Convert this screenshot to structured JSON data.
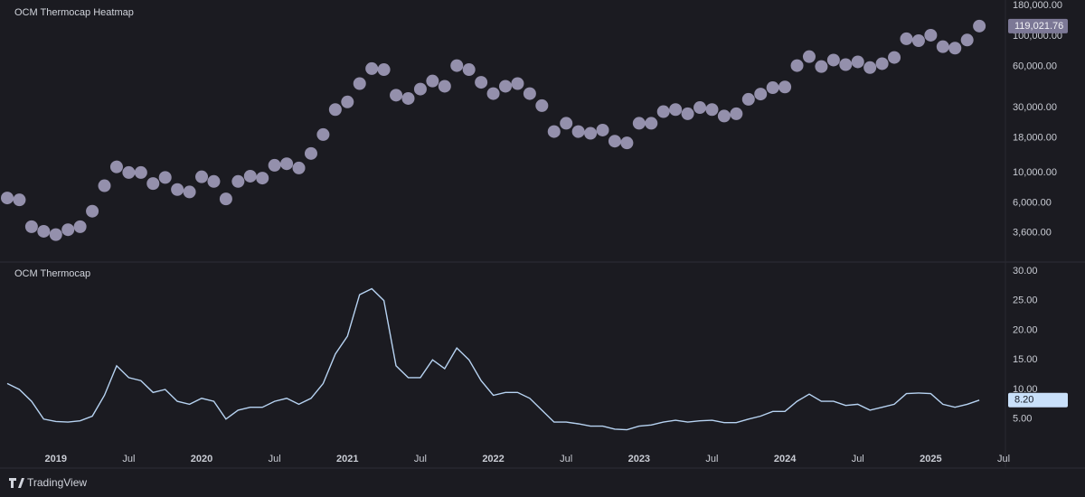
{
  "chart_data": [
    {
      "type": "heatmap-dots",
      "title": "OCM Thermocap Heatmap",
      "log_scale": true,
      "grid": false,
      "color": "#a9a5c4",
      "x": [
        "2018-09",
        "2018-10",
        "2018-11",
        "2018-12",
        "2019-01",
        "2019-02",
        "2019-03",
        "2019-04",
        "2019-05",
        "2019-06",
        "2019-07",
        "2019-08",
        "2019-09",
        "2019-10",
        "2019-11",
        "2019-12",
        "2020-01",
        "2020-02",
        "2020-03",
        "2020-04",
        "2020-05",
        "2020-06",
        "2020-07",
        "2020-08",
        "2020-09",
        "2020-10",
        "2020-11",
        "2020-12",
        "2021-01",
        "2021-02",
        "2021-03",
        "2021-04",
        "2021-05",
        "2021-06",
        "2021-07",
        "2021-08",
        "2021-09",
        "2021-10",
        "2021-11",
        "2021-12",
        "2022-01",
        "2022-02",
        "2022-03",
        "2022-04",
        "2022-05",
        "2022-06",
        "2022-07",
        "2022-08",
        "2022-09",
        "2022-10",
        "2022-11",
        "2022-12",
        "2023-01",
        "2023-02",
        "2023-03",
        "2023-04",
        "2023-05",
        "2023-06",
        "2023-07",
        "2023-08",
        "2023-09",
        "2023-10",
        "2023-11",
        "2023-12",
        "2024-01",
        "2024-02",
        "2024-03",
        "2024-04",
        "2024-05",
        "2024-06",
        "2024-07",
        "2024-08",
        "2024-09",
        "2024-10",
        "2024-11",
        "2024-12",
        "2025-01",
        "2025-02",
        "2025-03",
        "2025-04",
        "2025-05"
      ],
      "values": [
        6500,
        6300,
        4000,
        3700,
        3500,
        3800,
        4000,
        5200,
        8000,
        11000,
        10000,
        10000,
        8300,
        9200,
        7500,
        7200,
        9300,
        8600,
        6400,
        8600,
        9400,
        9100,
        11300,
        11600,
        10800,
        13800,
        19000,
        29000,
        33000,
        45000,
        58000,
        57000,
        37000,
        35000,
        41000,
        47000,
        43000,
        61000,
        57000,
        46000,
        38000,
        43000,
        45000,
        38000,
        31000,
        20000,
        23000,
        20000,
        19400,
        20500,
        17000,
        16500,
        23000,
        23000,
        28000,
        29000,
        27000,
        30000,
        29000,
        26000,
        27000,
        34500,
        37700,
        42000,
        42500,
        61000,
        71000,
        60000,
        67000,
        62000,
        65000,
        59000,
        63000,
        70000,
        96000,
        93000,
        102000,
        84000,
        82000,
        94000,
        119021.76
      ],
      "value_labels": [
        null,
        null,
        null,
        null,
        null,
        null,
        null,
        null,
        null,
        null,
        null,
        null,
        null,
        null,
        null,
        null,
        null,
        null,
        null,
        null,
        null,
        null,
        null,
        null,
        null,
        null,
        null,
        null,
        null,
        null,
        null,
        null,
        null,
        null,
        null,
        null,
        null,
        null,
        null,
        null,
        null,
        null,
        null,
        null,
        null,
        null,
        null,
        null,
        null,
        null,
        null,
        null,
        null,
        null,
        null,
        null,
        null,
        null,
        null,
        null,
        null,
        null,
        null,
        null,
        null,
        null,
        null,
        null,
        null,
        null,
        null,
        null,
        null,
        null,
        null,
        null,
        null,
        null,
        null,
        null,
        "119,021.76"
      ],
      "xlim": [
        "2018-09",
        "2025-07"
      ],
      "ylim": [
        2200,
        185000
      ],
      "yticks": [
        {
          "value": 3600,
          "label": "3,600.00"
        },
        {
          "value": 6000,
          "label": "6,000.00"
        },
        {
          "value": 10000,
          "label": "10,000.00"
        },
        {
          "value": 18000,
          "label": "18,000.00"
        },
        {
          "value": 30000,
          "label": "30,000.00"
        },
        {
          "value": 60000,
          "label": "60,000.00"
        },
        {
          "value": 100000,
          "label": "100,000.00"
        },
        {
          "value": 180000,
          "label": "180,000.00"
        }
      ]
    },
    {
      "type": "line",
      "title": "OCM Thermocap",
      "grid": false,
      "color": "#b7d3f2",
      "x": [
        "2018-09",
        "2018-10",
        "2018-11",
        "2018-12",
        "2019-01",
        "2019-02",
        "2019-03",
        "2019-04",
        "2019-05",
        "2019-06",
        "2019-07",
        "2019-08",
        "2019-09",
        "2019-10",
        "2019-11",
        "2019-12",
        "2020-01",
        "2020-02",
        "2020-03",
        "2020-04",
        "2020-05",
        "2020-06",
        "2020-07",
        "2020-08",
        "2020-09",
        "2020-10",
        "2020-11",
        "2020-12",
        "2021-01",
        "2021-02",
        "2021-03",
        "2021-04",
        "2021-05",
        "2021-06",
        "2021-07",
        "2021-08",
        "2021-09",
        "2021-10",
        "2021-11",
        "2021-12",
        "2022-01",
        "2022-02",
        "2022-03",
        "2022-04",
        "2022-05",
        "2022-06",
        "2022-07",
        "2022-08",
        "2022-09",
        "2022-10",
        "2022-11",
        "2022-12",
        "2023-01",
        "2023-02",
        "2023-03",
        "2023-04",
        "2023-05",
        "2023-06",
        "2023-07",
        "2023-08",
        "2023-09",
        "2023-10",
        "2023-11",
        "2023-12",
        "2024-01",
        "2024-02",
        "2024-03",
        "2024-04",
        "2024-05",
        "2024-06",
        "2024-07",
        "2024-08",
        "2024-09",
        "2024-10",
        "2024-11",
        "2024-12",
        "2025-01",
        "2025-02",
        "2025-03",
        "2025-04",
        "2025-05"
      ],
      "values": [
        11,
        10,
        8,
        5,
        4.6,
        4.5,
        4.7,
        5.5,
        9,
        14,
        12,
        11.5,
        9.5,
        10,
        8,
        7.5,
        8.5,
        8,
        5,
        6.5,
        7,
        7,
        8,
        8.5,
        7.5,
        8.5,
        11,
        16,
        19,
        26,
        27,
        25,
        14,
        12,
        12,
        15,
        13.5,
        17,
        15,
        11.5,
        9,
        9.5,
        9.5,
        8.5,
        6.5,
        4.5,
        4.5,
        4.2,
        3.8,
        3.8,
        3.3,
        3.2,
        3.8,
        4,
        4.5,
        4.8,
        4.5,
        4.7,
        4.8,
        4.4,
        4.4,
        5,
        5.5,
        6.3,
        6.3,
        8,
        9.2,
        8,
        8,
        7.3,
        7.5,
        6.5,
        7,
        7.5,
        9.3,
        9.4,
        9.3,
        7.5,
        7,
        7.5,
        8.2
      ],
      "value_labels": [
        null,
        null,
        null,
        null,
        null,
        null,
        null,
        null,
        null,
        null,
        null,
        null,
        null,
        null,
        null,
        null,
        null,
        null,
        null,
        null,
        null,
        null,
        null,
        null,
        null,
        null,
        null,
        null,
        null,
        null,
        null,
        null,
        null,
        null,
        null,
        null,
        null,
        null,
        null,
        null,
        null,
        null,
        null,
        null,
        null,
        null,
        null,
        null,
        null,
        null,
        null,
        null,
        null,
        null,
        null,
        null,
        null,
        null,
        null,
        null,
        null,
        null,
        null,
        null,
        null,
        null,
        null,
        null,
        null,
        null,
        null,
        null,
        null,
        null,
        null,
        null,
        null,
        null,
        null,
        null,
        "8.20"
      ],
      "xlim": [
        "2018-09",
        "2025-07"
      ],
      "ylim": [
        1,
        31.2
      ],
      "yticks": [
        {
          "value": 5,
          "label": "5.00"
        },
        {
          "value": 10,
          "label": "10.00"
        },
        {
          "value": 15,
          "label": "15.00"
        },
        {
          "value": 20,
          "label": "20.00"
        },
        {
          "value": 25,
          "label": "25.00"
        },
        {
          "value": 30,
          "label": "30.00"
        }
      ],
      "xticks": [
        {
          "value": "2019-01",
          "label": "2019"
        },
        {
          "value": "2019-07",
          "label": "Jul"
        },
        {
          "value": "2020-01",
          "label": "2020"
        },
        {
          "value": "2020-07",
          "label": "Jul"
        },
        {
          "value": "2021-01",
          "label": "2021"
        },
        {
          "value": "2021-07",
          "label": "Jul"
        },
        {
          "value": "2022-01",
          "label": "2022"
        },
        {
          "value": "2022-07",
          "label": "Jul"
        },
        {
          "value": "2023-01",
          "label": "2023"
        },
        {
          "value": "2023-07",
          "label": "Jul"
        },
        {
          "value": "2024-01",
          "label": "2024"
        },
        {
          "value": "2024-07",
          "label": "Jul"
        },
        {
          "value": "2025-01",
          "label": "2025"
        },
        {
          "value": "2025-07",
          "label": "Jul"
        }
      ]
    }
  ],
  "footer": {
    "brand": "TradingView"
  }
}
